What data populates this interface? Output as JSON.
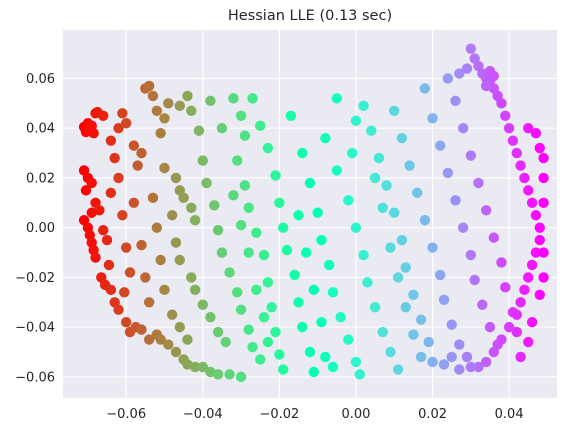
{
  "chart_data": {
    "type": "scatter",
    "title": "Hessian LLE (0.13 sec)",
    "xlabel": "",
    "ylabel": "",
    "xlim": [
      -0.0765,
      0.0525
    ],
    "ylim": [
      -0.0685,
      0.0795
    ],
    "xticks": [
      -0.06,
      -0.04,
      -0.02,
      0.0,
      0.02,
      0.04
    ],
    "xtick_labels": [
      "−0.06",
      "−0.04",
      "−0.02",
      "0.00",
      "0.02",
      "0.04"
    ],
    "yticks": [
      -0.06,
      -0.04,
      -0.02,
      0.0,
      0.02,
      0.04,
      0.06
    ],
    "ytick_labels": [
      "−0.06",
      "−0.04",
      "−0.02",
      "0.00",
      "0.02",
      "0.04",
      "0.06"
    ],
    "grid": true,
    "style": "seaborn-darkgrid",
    "colormap": "rainbow",
    "color_range_note": "color varies with the horizontal coordinate, red at left, violet at right",
    "colors": {
      "background": "#EAEAF2",
      "grid": "#FFFFFF",
      "text": "#262626"
    },
    "points": [
      {
        "x": -0.071,
        "y": 0.0405
      },
      {
        "x": -0.0705,
        "y": 0.0385
      },
      {
        "x": -0.07,
        "y": 0.042
      },
      {
        "x": -0.0695,
        "y": 0.0395
      },
      {
        "x": -0.069,
        "y": 0.041
      },
      {
        "x": -0.0685,
        "y": 0.038
      },
      {
        "x": -0.068,
        "y": 0.046
      },
      {
        "x": -0.0675,
        "y": 0.0465
      },
      {
        "x": -0.071,
        "y": 0.023
      },
      {
        "x": -0.07,
        "y": 0.02
      },
      {
        "x": -0.069,
        "y": 0.018
      },
      {
        "x": -0.0705,
        "y": 0.015
      },
      {
        "x": -0.071,
        "y": 0.003
      },
      {
        "x": -0.07,
        "y": 0.0
      },
      {
        "x": -0.0695,
        "y": -0.003
      },
      {
        "x": -0.069,
        "y": -0.006
      },
      {
        "x": -0.0685,
        "y": -0.009
      },
      {
        "x": -0.068,
        "y": -0.012
      },
      {
        "x": -0.069,
        "y": 0.006
      },
      {
        "x": -0.068,
        "y": 0.01
      },
      {
        "x": -0.067,
        "y": 0.007
      },
      {
        "x": -0.066,
        "y": -0.001
      },
      {
        "x": -0.0665,
        "y": -0.02
      },
      {
        "x": -0.0655,
        "y": -0.023
      },
      {
        "x": -0.0645,
        "y": -0.015
      },
      {
        "x": -0.064,
        "y": -0.025
      },
      {
        "x": -0.063,
        "y": -0.03
      },
      {
        "x": -0.062,
        "y": -0.033
      },
      {
        "x": -0.0605,
        "y": -0.026
      },
      {
        "x": -0.06,
        "y": -0.038
      },
      {
        "x": -0.059,
        "y": -0.042
      },
      {
        "x": -0.0575,
        "y": -0.04
      },
      {
        "x": -0.056,
        "y": -0.041
      },
      {
        "x": -0.054,
        "y": -0.045
      },
      {
        "x": -0.052,
        "y": -0.043
      },
      {
        "x": -0.051,
        "y": -0.045
      },
      {
        "x": -0.049,
        "y": -0.047
      },
      {
        "x": -0.047,
        "y": -0.05
      },
      {
        "x": -0.045,
        "y": -0.053
      },
      {
        "x": -0.044,
        "y": -0.055
      },
      {
        "x": -0.042,
        "y": -0.056
      },
      {
        "x": -0.04,
        "y": -0.056
      },
      {
        "x": -0.038,
        "y": -0.058
      },
      {
        "x": -0.036,
        "y": -0.059
      },
      {
        "x": -0.033,
        "y": -0.059
      },
      {
        "x": -0.03,
        "y": -0.06
      },
      {
        "x": -0.066,
        "y": 0.045
      },
      {
        "x": -0.064,
        "y": 0.035
      },
      {
        "x": -0.063,
        "y": 0.028
      },
      {
        "x": -0.062,
        "y": 0.04
      },
      {
        "x": -0.061,
        "y": 0.046
      },
      {
        "x": -0.06,
        "y": 0.042
      },
      {
        "x": -0.058,
        "y": 0.033
      },
      {
        "x": -0.057,
        "y": 0.025
      },
      {
        "x": -0.056,
        "y": 0.03
      },
      {
        "x": -0.055,
        "y": 0.056
      },
      {
        "x": -0.054,
        "y": 0.057
      },
      {
        "x": -0.053,
        "y": 0.053
      },
      {
        "x": -0.052,
        "y": 0.047
      },
      {
        "x": -0.05,
        "y": 0.044
      },
      {
        "x": -0.051,
        "y": 0.038
      },
      {
        "x": -0.05,
        "y": 0.024
      },
      {
        "x": -0.049,
        "y": 0.05
      },
      {
        "x": -0.047,
        "y": 0.02
      },
      {
        "x": -0.046,
        "y": 0.015
      },
      {
        "x": -0.045,
        "y": 0.012
      },
      {
        "x": -0.043,
        "y": 0.008
      },
      {
        "x": -0.042,
        "y": 0.003
      },
      {
        "x": -0.048,
        "y": 0.005
      },
      {
        "x": -0.047,
        "y": -0.006
      },
      {
        "x": -0.046,
        "y": -0.013
      },
      {
        "x": -0.043,
        "y": -0.02
      },
      {
        "x": -0.042,
        "y": -0.025
      },
      {
        "x": -0.04,
        "y": -0.031
      },
      {
        "x": -0.038,
        "y": -0.036
      },
      {
        "x": -0.036,
        "y": -0.042
      },
      {
        "x": -0.034,
        "y": -0.046
      },
      {
        "x": -0.046,
        "y": 0.049
      },
      {
        "x": -0.044,
        "y": 0.053
      },
      {
        "x": -0.043,
        "y": 0.047
      },
      {
        "x": -0.041,
        "y": 0.039
      },
      {
        "x": -0.04,
        "y": 0.027
      },
      {
        "x": -0.039,
        "y": 0.018
      },
      {
        "x": -0.037,
        "y": 0.009
      },
      {
        "x": -0.036,
        "y": -0.001
      },
      {
        "x": -0.035,
        "y": -0.01
      },
      {
        "x": -0.033,
        "y": -0.018
      },
      {
        "x": -0.031,
        "y": -0.026
      },
      {
        "x": -0.03,
        "y": -0.033
      },
      {
        "x": -0.028,
        "y": -0.041
      },
      {
        "x": -0.027,
        "y": -0.048
      },
      {
        "x": -0.025,
        "y": -0.053
      },
      {
        "x": -0.038,
        "y": 0.051
      },
      {
        "x": -0.035,
        "y": 0.04
      },
      {
        "x": -0.032,
        "y": 0.052
      },
      {
        "x": -0.03,
        "y": 0.045
      },
      {
        "x": -0.029,
        "y": 0.037
      },
      {
        "x": -0.031,
        "y": 0.027
      },
      {
        "x": -0.029,
        "y": 0.017
      },
      {
        "x": -0.028,
        "y": 0.008
      },
      {
        "x": -0.026,
        "y": -0.002
      },
      {
        "x": -0.024,
        "y": -0.011
      },
      {
        "x": -0.023,
        "y": -0.022
      },
      {
        "x": -0.022,
        "y": -0.032
      },
      {
        "x": -0.021,
        "y": -0.042
      },
      {
        "x": -0.02,
        "y": -0.051
      },
      {
        "x": -0.019,
        "y": -0.057
      },
      {
        "x": -0.027,
        "y": 0.052
      },
      {
        "x": -0.025,
        "y": 0.041
      },
      {
        "x": -0.023,
        "y": 0.032
      },
      {
        "x": -0.021,
        "y": 0.021
      },
      {
        "x": -0.02,
        "y": 0.01
      },
      {
        "x": -0.019,
        "y": 0.0
      },
      {
        "x": -0.018,
        "y": -0.009
      },
      {
        "x": -0.016,
        "y": -0.019
      },
      {
        "x": -0.015,
        "y": -0.03
      },
      {
        "x": -0.014,
        "y": -0.04
      },
      {
        "x": -0.012,
        "y": -0.05
      },
      {
        "x": -0.011,
        "y": -0.058
      },
      {
        "x": -0.017,
        "y": 0.045
      },
      {
        "x": -0.014,
        "y": 0.03
      },
      {
        "x": -0.012,
        "y": 0.018
      },
      {
        "x": -0.01,
        "y": 0.006
      },
      {
        "x": -0.009,
        "y": -0.005
      },
      {
        "x": -0.007,
        "y": -0.015
      },
      {
        "x": -0.006,
        "y": -0.026
      },
      {
        "x": -0.004,
        "y": -0.036
      },
      {
        "x": -0.002,
        "y": -0.045
      },
      {
        "x": 0.0,
        "y": -0.054
      },
      {
        "x": 0.001,
        "y": -0.059
      },
      {
        "x": -0.008,
        "y": 0.036
      },
      {
        "x": -0.005,
        "y": 0.023
      },
      {
        "x": -0.002,
        "y": 0.011
      },
      {
        "x": 0.0,
        "y": 0.0
      },
      {
        "x": 0.002,
        "y": -0.011
      },
      {
        "x": 0.003,
        "y": -0.022
      },
      {
        "x": 0.005,
        "y": -0.032
      },
      {
        "x": 0.007,
        "y": -0.042
      },
      {
        "x": 0.009,
        "y": -0.05
      },
      {
        "x": 0.011,
        "y": -0.057
      },
      {
        "x": 0.002,
        "y": 0.049
      },
      {
        "x": 0.004,
        "y": 0.039
      },
      {
        "x": 0.006,
        "y": 0.028
      },
      {
        "x": 0.008,
        "y": 0.017
      },
      {
        "x": 0.01,
        "y": 0.006
      },
      {
        "x": 0.012,
        "y": -0.005
      },
      {
        "x": 0.013,
        "y": -0.016
      },
      {
        "x": 0.015,
        "y": -0.027
      },
      {
        "x": 0.017,
        "y": -0.037
      },
      {
        "x": 0.019,
        "y": -0.046
      },
      {
        "x": 0.02,
        "y": -0.054
      },
      {
        "x": 0.01,
        "y": 0.047
      },
      {
        "x": 0.012,
        "y": 0.036
      },
      {
        "x": 0.014,
        "y": 0.025
      },
      {
        "x": 0.016,
        "y": 0.014
      },
      {
        "x": 0.018,
        "y": 0.003
      },
      {
        "x": 0.02,
        "y": -0.008
      },
      {
        "x": 0.022,
        "y": -0.019
      },
      {
        "x": 0.023,
        "y": -0.029
      },
      {
        "x": 0.025,
        "y": -0.039
      },
      {
        "x": 0.027,
        "y": -0.047
      },
      {
        "x": 0.029,
        "y": -0.052
      },
      {
        "x": 0.018,
        "y": 0.056
      },
      {
        "x": 0.02,
        "y": 0.044
      },
      {
        "x": 0.022,
        "y": 0.033
      },
      {
        "x": 0.024,
        "y": 0.022
      },
      {
        "x": 0.026,
        "y": 0.011
      },
      {
        "x": 0.028,
        "y": 0.0
      },
      {
        "x": 0.03,
        "y": -0.011
      },
      {
        "x": 0.031,
        "y": -0.021
      },
      {
        "x": 0.033,
        "y": -0.031
      },
      {
        "x": 0.035,
        "y": -0.04
      },
      {
        "x": 0.037,
        "y": -0.047
      },
      {
        "x": 0.024,
        "y": 0.06
      },
      {
        "x": 0.026,
        "y": 0.051
      },
      {
        "x": 0.028,
        "y": 0.04
      },
      {
        "x": 0.03,
        "y": 0.029
      },
      {
        "x": 0.032,
        "y": 0.018
      },
      {
        "x": 0.034,
        "y": 0.007
      },
      {
        "x": 0.036,
        "y": -0.004
      },
      {
        "x": 0.038,
        "y": -0.014
      },
      {
        "x": 0.039,
        "y": -0.024
      },
      {
        "x": 0.041,
        "y": -0.034
      },
      {
        "x": 0.042,
        "y": -0.042
      },
      {
        "x": 0.03,
        "y": 0.072
      },
      {
        "x": 0.031,
        "y": 0.068
      },
      {
        "x": 0.032,
        "y": 0.065
      },
      {
        "x": 0.033,
        "y": 0.062
      },
      {
        "x": 0.034,
        "y": 0.06
      },
      {
        "x": 0.035,
        "y": 0.059
      },
      {
        "x": 0.036,
        "y": 0.056
      },
      {
        "x": 0.037,
        "y": 0.053
      },
      {
        "x": 0.038,
        "y": 0.05
      },
      {
        "x": 0.039,
        "y": 0.045
      },
      {
        "x": 0.04,
        "y": 0.04
      },
      {
        "x": 0.041,
        "y": 0.035
      },
      {
        "x": 0.042,
        "y": 0.03
      },
      {
        "x": 0.043,
        "y": 0.025
      },
      {
        "x": 0.044,
        "y": 0.02
      },
      {
        "x": 0.045,
        "y": 0.015
      },
      {
        "x": 0.046,
        "y": 0.01
      },
      {
        "x": 0.047,
        "y": 0.005
      },
      {
        "x": 0.048,
        "y": 0.0
      },
      {
        "x": 0.048,
        "y": -0.005
      },
      {
        "x": 0.047,
        "y": -0.01
      },
      {
        "x": 0.046,
        "y": -0.015
      },
      {
        "x": 0.045,
        "y": -0.02
      },
      {
        "x": 0.044,
        "y": -0.025
      },
      {
        "x": 0.043,
        "y": -0.03
      },
      {
        "x": 0.042,
        "y": -0.035
      },
      {
        "x": 0.04,
        "y": -0.04
      },
      {
        "x": 0.038,
        "y": -0.045
      },
      {
        "x": 0.036,
        "y": -0.05
      },
      {
        "x": 0.034,
        "y": -0.054
      },
      {
        "x": 0.032,
        "y": -0.056
      },
      {
        "x": 0.029,
        "y": 0.064
      },
      {
        "x": 0.027,
        "y": 0.062
      },
      {
        "x": 0.035,
        "y": 0.063
      },
      {
        "x": 0.036,
        "y": 0.061
      },
      {
        "x": 0.034,
        "y": 0.057
      },
      {
        "x": 0.045,
        "y": 0.04
      },
      {
        "x": 0.047,
        "y": 0.038
      },
      {
        "x": 0.048,
        "y": 0.032
      },
      {
        "x": 0.049,
        "y": 0.028
      },
      {
        "x": 0.049,
        "y": 0.02
      },
      {
        "x": 0.049,
        "y": 0.01
      },
      {
        "x": 0.049,
        "y": -0.01
      },
      {
        "x": 0.049,
        "y": -0.02
      },
      {
        "x": 0.048,
        "y": -0.027
      },
      {
        "x": 0.046,
        "y": -0.038
      },
      {
        "x": 0.045,
        "y": -0.046
      },
      {
        "x": 0.043,
        "y": -0.052
      },
      {
        "x": -0.065,
        "y": -0.005
      },
      {
        "x": -0.064,
        "y": 0.014
      },
      {
        "x": -0.062,
        "y": 0.02
      },
      {
        "x": -0.061,
        "y": 0.005
      },
      {
        "x": -0.06,
        "y": -0.008
      },
      {
        "x": -0.059,
        "y": -0.018
      },
      {
        "x": -0.058,
        "y": 0.01
      },
      {
        "x": -0.056,
        "y": -0.007
      },
      {
        "x": -0.055,
        "y": -0.02
      },
      {
        "x": -0.054,
        "y": -0.03
      },
      {
        "x": -0.053,
        "y": 0.012
      },
      {
        "x": -0.052,
        "y": 0.0
      },
      {
        "x": -0.051,
        "y": -0.013
      },
      {
        "x": -0.05,
        "y": -0.025
      },
      {
        "x": -0.048,
        "y": -0.035
      },
      {
        "x": -0.046,
        "y": -0.04
      },
      {
        "x": -0.044,
        "y": -0.045
      },
      {
        "x": -0.005,
        "y": 0.052
      },
      {
        "x": 0.0,
        "y": 0.043
      },
      {
        "x": -0.001,
        "y": 0.03
      },
      {
        "x": 0.005,
        "y": 0.02
      },
      {
        "x": 0.007,
        "y": 0.008
      },
      {
        "x": 0.009,
        "y": -0.008
      },
      {
        "x": 0.011,
        "y": -0.02
      },
      {
        "x": 0.013,
        "y": -0.032
      },
      {
        "x": 0.015,
        "y": -0.043
      },
      {
        "x": 0.017,
        "y": -0.052
      },
      {
        "x": 0.023,
        "y": -0.055
      },
      {
        "x": 0.025,
        "y": -0.052
      },
      {
        "x": 0.027,
        "y": -0.057
      },
      {
        "x": 0.03,
        "y": -0.056
      },
      {
        "x": -0.032,
        "y": 0.013
      },
      {
        "x": -0.03,
        "y": 0.001
      },
      {
        "x": -0.028,
        "y": -0.01
      },
      {
        "x": -0.026,
        "y": -0.025
      },
      {
        "x": -0.024,
        "y": -0.036
      },
      {
        "x": -0.023,
        "y": -0.046
      },
      {
        "x": -0.015,
        "y": 0.005
      },
      {
        "x": -0.013,
        "y": -0.01
      },
      {
        "x": -0.011,
        "y": -0.025
      },
      {
        "x": -0.009,
        "y": -0.038
      },
      {
        "x": -0.008,
        "y": -0.052
      },
      {
        "x": -0.006,
        "y": -0.056
      }
    ]
  }
}
